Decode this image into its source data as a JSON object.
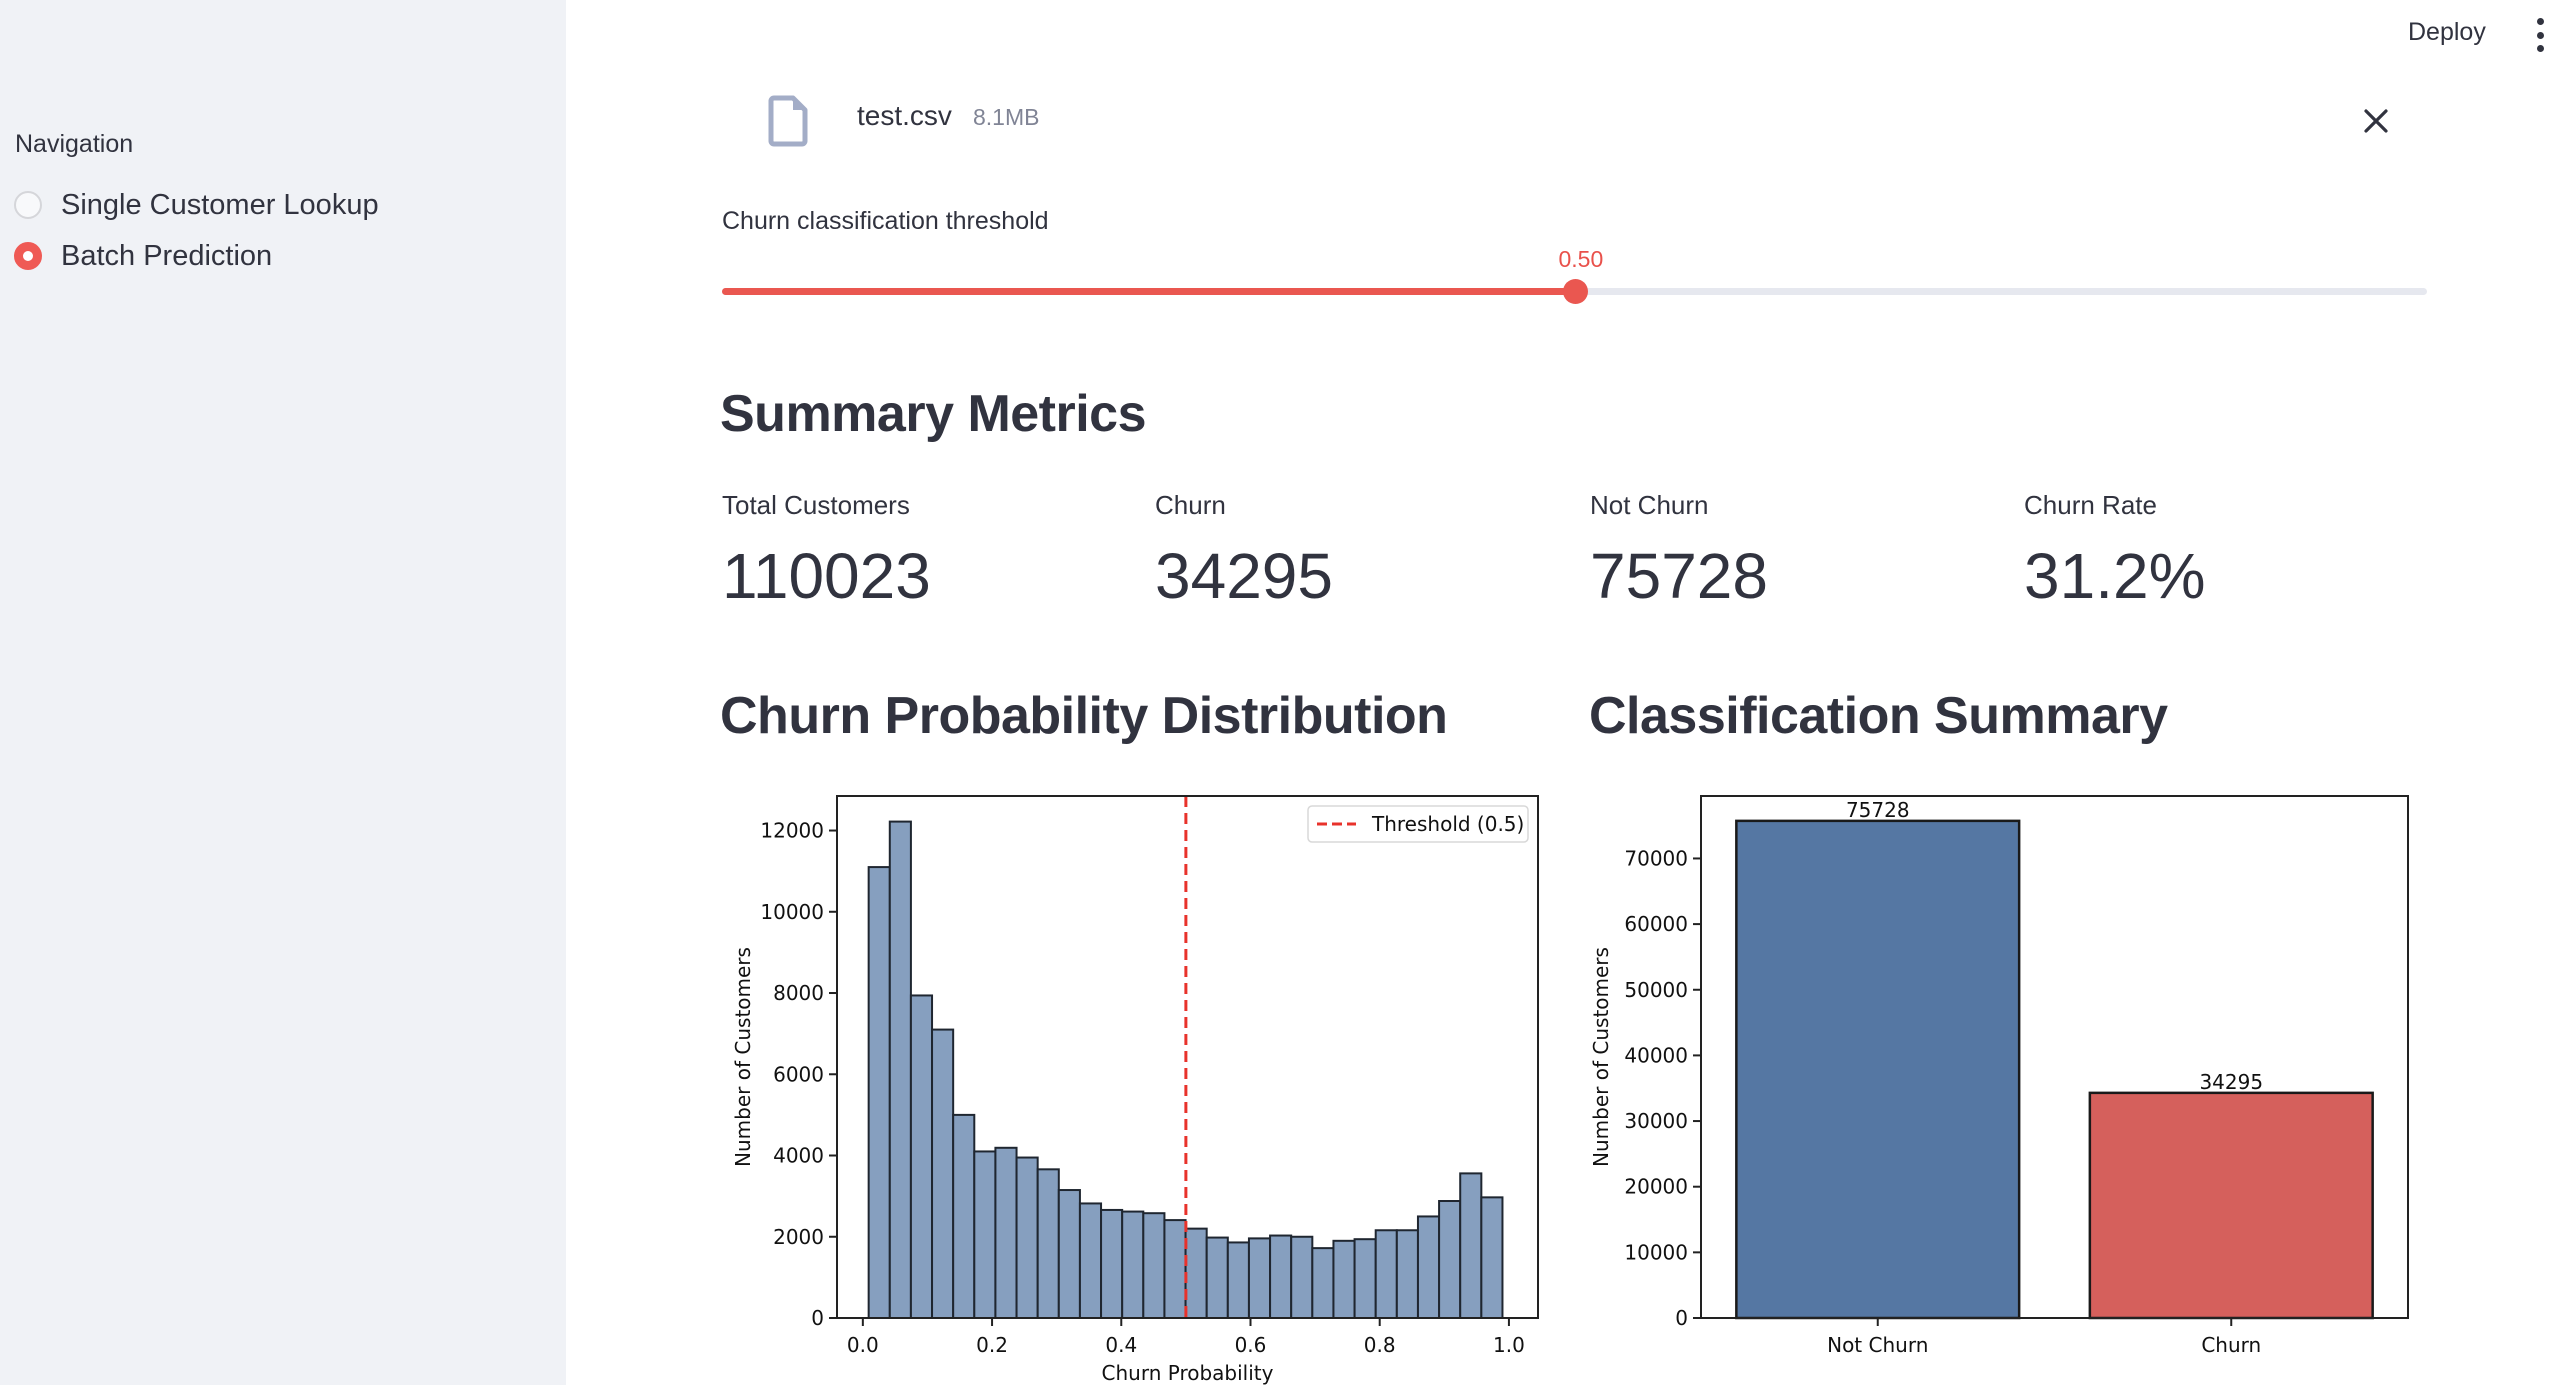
{
  "header": {
    "deploy_label": "Deploy",
    "menu_icon": "kebab-menu-icon"
  },
  "sidebar": {
    "nav_label": "Navigation",
    "options": [
      {
        "label": "Single Customer Lookup",
        "selected": false
      },
      {
        "label": "Batch Prediction",
        "selected": true
      }
    ]
  },
  "uploader": {
    "file_icon": "file-icon",
    "file_name": "test.csv",
    "file_size": "8.1MB",
    "remove_icon": "close-icon"
  },
  "slider": {
    "label": "Churn classification threshold",
    "value_text": "0.50",
    "value": 0.5,
    "min": 0.0,
    "max": 1.0
  },
  "summary": {
    "title": "Summary Metrics",
    "metrics": [
      {
        "label": "Total Customers",
        "value": "110023"
      },
      {
        "label": "Churn",
        "value": "34295"
      },
      {
        "label": "Not Churn",
        "value": "75728"
      },
      {
        "label": "Churn Rate",
        "value": "31.2%"
      }
    ]
  },
  "sections": {
    "distribution_title": "Churn Probability Distribution",
    "classification_title": "Classification Summary"
  },
  "colors": {
    "accent": "#ea5750",
    "hist_fill": "#869fbf",
    "not_churn": "#5577a3",
    "churn": "#d5605c",
    "threshold_line": "#e8322b"
  },
  "chart_data": [
    {
      "type": "bar",
      "subtype": "histogram",
      "title": "",
      "xlabel": "Churn Probability",
      "ylabel": "Number of Customers",
      "xlim": [
        -0.04,
        1.045
      ],
      "ylim": [
        0,
        12850
      ],
      "grid": false,
      "bin_start": 0.009,
      "bin_end": 0.99,
      "bins": 30,
      "values": [
        11100,
        12220,
        7940,
        7100,
        5000,
        4100,
        4190,
        3950,
        3660,
        3150,
        2820,
        2660,
        2620,
        2580,
        2410,
        2200,
        1980,
        1860,
        1960,
        2030,
        2000,
        1720,
        1900,
        1940,
        2160,
        2160,
        2500,
        2880,
        3560,
        2970
      ],
      "xticks": [
        0.0,
        0.2,
        0.4,
        0.6,
        0.8,
        1.0
      ],
      "xtick_labels": [
        "0.0",
        "0.2",
        "0.4",
        "0.6",
        "0.8",
        "1.0"
      ],
      "yticks": [
        0,
        2000,
        4000,
        6000,
        8000,
        10000,
        12000
      ],
      "ytick_labels": [
        "0",
        "2000",
        "4000",
        "6000",
        "8000",
        "10000",
        "12000"
      ],
      "threshold": 0.5,
      "legend": {
        "position": "top-right",
        "entries": [
          "Threshold (0.5)"
        ]
      }
    },
    {
      "type": "bar",
      "title": "",
      "xlabel": "",
      "ylabel": "Number of Customers",
      "categories": [
        "Not Churn",
        "Churn"
      ],
      "values": [
        75728,
        34295
      ],
      "value_labels": [
        "75728",
        "34295"
      ],
      "ylim": [
        0,
        79514
      ],
      "grid": false,
      "yticks": [
        0,
        10000,
        20000,
        30000,
        40000,
        50000,
        60000,
        70000
      ],
      "ytick_labels": [
        "0",
        "10000",
        "20000",
        "30000",
        "40000",
        "50000",
        "60000",
        "70000"
      ]
    }
  ]
}
